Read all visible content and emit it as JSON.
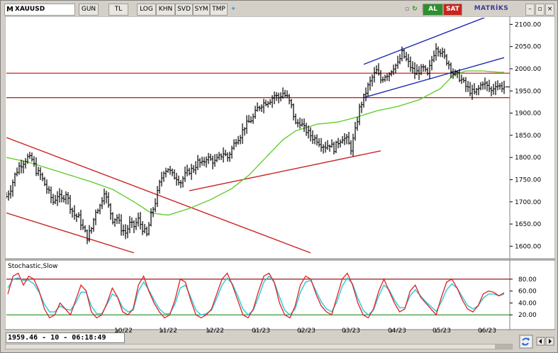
{
  "toolbar": {
    "symbol": "XAUUSD",
    "buttons": [
      "GUN",
      "TL",
      "LOG",
      "KHN",
      "SVD",
      "SYM",
      "TMP"
    ],
    "buy_label": "AL",
    "sell_label": "SAT",
    "brand": "MATRİKS"
  },
  "status_text": "1959.46 - 10 - 06:18:49",
  "colors": {
    "price_bars": "#000000",
    "moving_average": "#66cc33",
    "horizontal_levels": "#cc2222",
    "red_channel": "#cc2222",
    "blue_channel": "#1a2ab0",
    "stoch_k": "#e02020",
    "stoch_d": "#33ccdd",
    "stoch_upper": "#8b0000",
    "stoch_lower": "#228b22"
  },
  "chart_data": [
    {
      "type": "ohlc",
      "series": [
        {
          "name": "XAUUSD"
        }
      ],
      "x_tick_labels": [
        "10/22",
        "11/22",
        "12/22",
        "01/23",
        "02/23",
        "03/23",
        "04/23",
        "05/23",
        "06/23"
      ],
      "y_ticks": [
        1600,
        1650,
        1700,
        1750,
        1800,
        1850,
        1900,
        1950,
        2000,
        2050,
        2100
      ],
      "ylim": [
        1575,
        2115
      ],
      "close_path": [
        [
          0,
          1712
        ],
        [
          2,
          1730
        ],
        [
          4,
          1760
        ],
        [
          6,
          1780
        ],
        [
          8,
          1790
        ],
        [
          10,
          1800
        ],
        [
          12,
          1795
        ],
        [
          14,
          1770
        ],
        [
          16,
          1760
        ],
        [
          18,
          1740
        ],
        [
          20,
          1720
        ],
        [
          22,
          1700
        ],
        [
          24,
          1715
        ],
        [
          26,
          1705
        ],
        [
          28,
          1720
        ],
        [
          30,
          1690
        ],
        [
          32,
          1670
        ],
        [
          34,
          1665
        ],
        [
          36,
          1640
        ],
        [
          38,
          1620
        ],
        [
          40,
          1640
        ],
        [
          42,
          1680
        ],
        [
          44,
          1690
        ],
        [
          46,
          1725
        ],
        [
          48,
          1690
        ],
        [
          50,
          1660
        ],
        [
          52,
          1665
        ],
        [
          54,
          1640
        ],
        [
          56,
          1630
        ],
        [
          58,
          1650
        ],
        [
          60,
          1645
        ],
        [
          62,
          1660
        ],
        [
          64,
          1640
        ],
        [
          66,
          1625
        ],
        [
          68,
          1670
        ],
        [
          70,
          1700
        ],
        [
          72,
          1740
        ],
        [
          74,
          1770
        ],
        [
          76,
          1775
        ],
        [
          78,
          1760
        ],
        [
          80,
          1755
        ],
        [
          82,
          1745
        ],
        [
          84,
          1760
        ],
        [
          86,
          1770
        ],
        [
          88,
          1775
        ],
        [
          90,
          1790
        ],
        [
          92,
          1785
        ],
        [
          94,
          1800
        ],
        [
          96,
          1795
        ],
        [
          98,
          1790
        ],
        [
          100,
          1800
        ],
        [
          102,
          1810
        ],
        [
          104,
          1800
        ],
        [
          106,
          1820
        ],
        [
          108,
          1840
        ],
        [
          110,
          1850
        ],
        [
          112,
          1870
        ],
        [
          114,
          1880
        ],
        [
          116,
          1890
        ],
        [
          118,
          1910
        ],
        [
          120,
          1920
        ],
        [
          122,
          1925
        ],
        [
          124,
          1930
        ],
        [
          126,
          1940
        ],
        [
          128,
          1935
        ],
        [
          130,
          1945
        ],
        [
          132,
          1935
        ],
        [
          134,
          1915
        ],
        [
          136,
          1875
        ],
        [
          138,
          1880
        ],
        [
          140,
          1865
        ],
        [
          142,
          1855
        ],
        [
          144,
          1845
        ],
        [
          146,
          1840
        ],
        [
          148,
          1830
        ],
        [
          150,
          1825
        ],
        [
          152,
          1830
        ],
        [
          154,
          1820
        ],
        [
          156,
          1835
        ],
        [
          158,
          1845
        ],
        [
          160,
          1840
        ],
        [
          162,
          1820
        ],
        [
          164,
          1860
        ],
        [
          166,
          1910
        ],
        [
          168,
          1935
        ],
        [
          170,
          1960
        ],
        [
          172,
          1980
        ],
        [
          174,
          1995
        ],
        [
          176,
          1975
        ],
        [
          178,
          1985
        ],
        [
          180,
          1990
        ],
        [
          182,
          2005
        ],
        [
          184,
          2010
        ],
        [
          186,
          2035
        ],
        [
          188,
          2020
        ],
        [
          190,
          2005
        ],
        [
          192,
          1990
        ],
        [
          194,
          1995
        ],
        [
          196,
          2000
        ],
        [
          198,
          1985
        ],
        [
          200,
          2020
        ],
        [
          202,
          2050
        ],
        [
          204,
          2040
        ],
        [
          206,
          2025
        ],
        [
          208,
          2010
        ],
        [
          210,
          1990
        ],
        [
          212,
          1985
        ],
        [
          214,
          1975
        ],
        [
          216,
          1960
        ],
        [
          218,
          1950
        ],
        [
          220,
          1945
        ],
        [
          222,
          1955
        ],
        [
          224,
          1970
        ],
        [
          226,
          1960
        ],
        [
          228,
          1950
        ],
        [
          230,
          1965
        ],
        [
          232,
          1960
        ],
        [
          234,
          1959
        ]
      ],
      "moving_average_path": [
        [
          0,
          1800
        ],
        [
          10,
          1790
        ],
        [
          20,
          1775
        ],
        [
          30,
          1760
        ],
        [
          40,
          1745
        ],
        [
          50,
          1728
        ],
        [
          60,
          1700
        ],
        [
          68,
          1675
        ],
        [
          76,
          1670
        ],
        [
          86,
          1685
        ],
        [
          96,
          1705
        ],
        [
          106,
          1730
        ],
        [
          114,
          1760
        ],
        [
          122,
          1800
        ],
        [
          130,
          1840
        ],
        [
          136,
          1860
        ],
        [
          146,
          1875
        ],
        [
          156,
          1880
        ],
        [
          164,
          1890
        ],
        [
          174,
          1905
        ],
        [
          184,
          1915
        ],
        [
          194,
          1930
        ],
        [
          204,
          1955
        ],
        [
          210,
          1985
        ],
        [
          216,
          1995
        ],
        [
          224,
          1995
        ],
        [
          232,
          1992
        ]
      ],
      "horizontal_levels": [
        1990,
        1935
      ],
      "trend_lines": [
        {
          "name": "red-channel-upper",
          "color": "red",
          "from": [
            0,
            1845
          ],
          "to": [
            143,
            1585
          ]
        },
        {
          "name": "red-channel-lower",
          "color": "red",
          "from": [
            0,
            1675
          ],
          "to": [
            60,
            1585
          ]
        },
        {
          "name": "red-support",
          "color": "red",
          "from": [
            86,
            1725
          ],
          "to": [
            176,
            1815
          ]
        },
        {
          "name": "blue-channel-upper",
          "color": "blue",
          "from": [
            168,
            2010
          ],
          "to": [
            230,
            2125
          ]
        },
        {
          "name": "blue-channel-lower",
          "color": "blue",
          "from": [
            168,
            1935
          ],
          "to": [
            234,
            2025
          ]
        }
      ]
    },
    {
      "type": "line",
      "title": "Stochastic,Slow",
      "y_ticks": [
        20,
        40,
        60,
        80
      ],
      "ylim": [
        0,
        100
      ],
      "reference_levels": [
        20,
        80
      ],
      "series": [
        {
          "name": "%K",
          "values": [
            55,
            85,
            90,
            70,
            85,
            80,
            60,
            30,
            15,
            20,
            40,
            30,
            20,
            45,
            70,
            60,
            25,
            15,
            20,
            40,
            65,
            50,
            25,
            20,
            30,
            70,
            85,
            60,
            40,
            25,
            15,
            20,
            45,
            80,
            75,
            45,
            20,
            15,
            20,
            30,
            55,
            80,
            90,
            70,
            45,
            20,
            15,
            30,
            60,
            85,
            90,
            75,
            40,
            20,
            15,
            35,
            70,
            85,
            80,
            55,
            35,
            25,
            20,
            50,
            80,
            90,
            70,
            40,
            20,
            15,
            30,
            60,
            80,
            60,
            40,
            25,
            30,
            60,
            70,
            50,
            40,
            30,
            20,
            50,
            75,
            80,
            65,
            45,
            30,
            25,
            35,
            55,
            60,
            58,
            52,
            57
          ]
        },
        {
          "name": "%D",
          "values": [
            65,
            80,
            82,
            78,
            78,
            72,
            58,
            38,
            25,
            25,
            35,
            30,
            28,
            40,
            58,
            58,
            35,
            22,
            22,
            38,
            55,
            50,
            32,
            25,
            28,
            60,
            75,
            62,
            45,
            30,
            22,
            22,
            38,
            65,
            70,
            50,
            28,
            20,
            22,
            28,
            48,
            70,
            82,
            72,
            52,
            30,
            20,
            28,
            50,
            75,
            85,
            75,
            50,
            28,
            20,
            30,
            58,
            75,
            78,
            60,
            42,
            30,
            25,
            42,
            68,
            82,
            72,
            48,
            28,
            20,
            28,
            52,
            70,
            62,
            45,
            32,
            32,
            52,
            62,
            52,
            42,
            34,
            26,
            42,
            62,
            72,
            65,
            50,
            36,
            30,
            35,
            48,
            55,
            55,
            52,
            55
          ]
        }
      ]
    }
  ]
}
